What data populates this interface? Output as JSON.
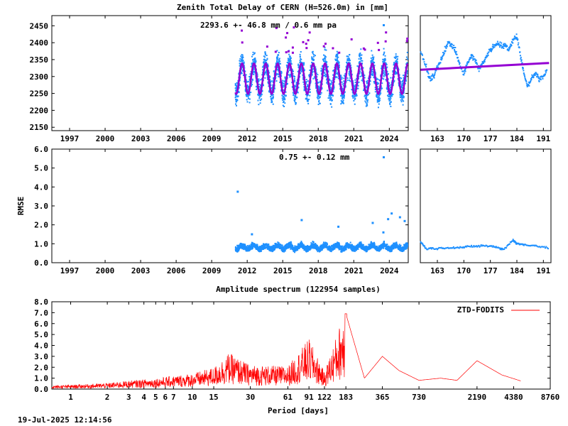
{
  "chart_data": [
    {
      "id": "ztd",
      "type": "scatter",
      "title": "Zenith Total Delay of CERN (H=526.0m) in [mm]",
      "annotation": "2293.6 +-  46.8 mm /  0.6 mm pa",
      "ylim": [
        2140,
        2480
      ],
      "yticks": [
        "2150",
        "2200",
        "2250",
        "2300",
        "2350",
        "2400",
        "2450"
      ],
      "xlim": [
        1995.5,
        2025.6
      ],
      "xticks": [
        "1997",
        "2000",
        "2003",
        "2006",
        "2009",
        "2012",
        "2015",
        "2018",
        "2021",
        "2024"
      ],
      "series": [
        {
          "values": {
            "start": 2011.0,
            "end": 2025.55,
            "mean": 2293.6,
            "amplitude": 45,
            "spread": 55
          },
          "color": "#1e90ff"
        },
        {
          "values": {
            "start": 2011.0,
            "end": 2025.55,
            "mean": 2293.6,
            "amplitude": 45
          },
          "color": "#9400d3"
        }
      ],
      "color_points": "#1e90ff",
      "color_model": "#9400d3"
    },
    {
      "id": "ztd-zoom",
      "type": "scatter",
      "xlim": [
        158.5,
        193
      ],
      "xticks": [
        "163",
        "170",
        "177",
        "184",
        "191"
      ],
      "ylim": [
        2140,
        2480
      ],
      "series": [
        {
          "values": [
            [
              158.6,
              2370
            ],
            [
              160,
              2330
            ],
            [
              161,
              2290
            ],
            [
              162,
              2300
            ],
            [
              163,
              2330
            ],
            [
              164,
              2350
            ],
            [
              165,
              2380
            ],
            [
              166,
              2400
            ],
            [
              167,
              2390
            ],
            [
              168,
              2370
            ],
            [
              169,
              2330
            ],
            [
              170,
              2310
            ],
            [
              171,
              2340
            ],
            [
              172,
              2360
            ],
            [
              173,
              2350
            ],
            [
              174,
              2320
            ],
            [
              175,
              2340
            ],
            [
              176,
              2360
            ],
            [
              177,
              2380
            ],
            [
              178,
              2390
            ],
            [
              179,
              2400
            ],
            [
              180,
              2390
            ],
            [
              181,
              2390
            ],
            [
              182,
              2380
            ],
            [
              183,
              2410
            ],
            [
              184,
              2420
            ],
            [
              185,
              2360
            ],
            [
              186,
              2300
            ],
            [
              187,
              2270
            ],
            [
              188,
              2300
            ],
            [
              189,
              2310
            ],
            [
              190,
              2290
            ],
            [
              191,
              2300
            ],
            [
              192,
              2320
            ]
          ],
          "color": "#1e90ff"
        },
        {
          "values": [
            [
              158.6,
              2320
            ],
            [
              192.5,
              2340
            ]
          ],
          "color": "#9400d3"
        }
      ]
    },
    {
      "id": "rmse",
      "type": "scatter",
      "ylabel": "RMSE",
      "annotation": "0.75 +-  0.12 mm",
      "ylim": [
        0.0,
        6.0
      ],
      "yticks": [
        "0.0",
        "1.0",
        "2.0",
        "3.0",
        "4.0",
        "5.0",
        "6.0"
      ],
      "xlim": [
        1995.5,
        2025.6
      ],
      "xticks": [
        "1997",
        "2000",
        "2003",
        "2006",
        "2009",
        "2012",
        "2015",
        "2018",
        "2021",
        "2024"
      ],
      "series": [
        {
          "values": {
            "start": 2011.0,
            "end": 2025.55,
            "mean": 0.8,
            "spread": 0.25
          },
          "color": "#1e90ff"
        }
      ],
      "outliers": [
        [
          2011.2,
          3.75
        ],
        [
          2016.6,
          2.25
        ],
        [
          2019.7,
          1.9
        ],
        [
          2022.6,
          2.1
        ],
        [
          2023.9,
          2.3
        ],
        [
          2024.2,
          2.6
        ],
        [
          2024.9,
          2.4
        ],
        [
          2025.3,
          2.2
        ],
        [
          2023.5,
          1.6
        ],
        [
          2012.4,
          1.5
        ]
      ]
    },
    {
      "id": "rmse-zoom",
      "type": "scatter",
      "xlim": [
        158.5,
        193
      ],
      "xticks": [
        "163",
        "170",
        "177",
        "184",
        "191"
      ],
      "ylim": [
        0.0,
        6.0
      ],
      "series": [
        {
          "values": [
            [
              158.6,
              1.1
            ],
            [
              160,
              0.75
            ],
            [
              163,
              0.75
            ],
            [
              166,
              0.8
            ],
            [
              169,
              0.8
            ],
            [
              172,
              0.85
            ],
            [
              175,
              0.9
            ],
            [
              178,
              0.85
            ],
            [
              180.5,
              0.7
            ],
            [
              183,
              1.2
            ],
            [
              184,
              1.0
            ],
            [
              186,
              0.95
            ],
            [
              189,
              0.9
            ],
            [
              192.5,
              0.75
            ]
          ],
          "color": "#1e90ff"
        }
      ]
    },
    {
      "id": "spectrum",
      "type": "line",
      "title": "Amplitude spectrum (122954 samples)",
      "xlabel": "Period [days]",
      "ylim": [
        0.0,
        8.0
      ],
      "yticks": [
        "0.0",
        "1.0",
        "2.0",
        "3.0",
        "4.0",
        "5.0",
        "6.0",
        "7.0",
        "8.0"
      ],
      "xlim": [
        0.7,
        8760
      ],
      "xticks": [
        {
          "v": 1,
          "label": "1"
        },
        {
          "v": 2,
          "label": "2"
        },
        {
          "v": 3,
          "label": "3"
        },
        {
          "v": 4,
          "label": "4"
        },
        {
          "v": 5,
          "label": "5"
        },
        {
          "v": 6,
          "label": "6"
        },
        {
          "v": 7,
          "label": "7"
        },
        {
          "v": 10,
          "label": "10"
        },
        {
          "v": 15,
          "label": "15"
        },
        {
          "v": 30,
          "label": "30"
        },
        {
          "v": 61,
          "label": "61"
        },
        {
          "v": 91,
          "label": "91"
        },
        {
          "v": 122,
          "label": "122"
        },
        {
          "v": 183,
          "label": "183"
        },
        {
          "v": 365,
          "label": "365"
        },
        {
          "v": 730,
          "label": "730"
        },
        {
          "v": 2190,
          "label": "2190"
        },
        {
          "v": 4380,
          "label": "4380"
        },
        {
          "v": 8760,
          "label": "8760"
        }
      ],
      "series": [
        {
          "name": "ZTD-FODITS",
          "color": "#ff0000",
          "values": [
            [
              0.7,
              0.3
            ],
            [
              1,
              0.35
            ],
            [
              2,
              0.5
            ],
            [
              3,
              0.7
            ],
            [
              5,
              0.9
            ],
            [
              7,
              1.1
            ],
            [
              10,
              1.3
            ],
            [
              15,
              1.8
            ],
            [
              20,
              3.0
            ],
            [
              30,
              2.0
            ],
            [
              61,
              1.9
            ],
            [
              91,
              4.2
            ],
            [
              122,
              1.4
            ],
            [
              183,
              6.9
            ],
            [
              260,
              1.0
            ],
            [
              365,
              3.0
            ],
            [
              500,
              1.7
            ],
            [
              730,
              0.8
            ],
            [
              1100,
              1.0
            ],
            [
              1500,
              0.8
            ],
            [
              2190,
              2.6
            ],
            [
              3500,
              1.3
            ],
            [
              5000,
              0.75
            ]
          ]
        }
      ]
    }
  ],
  "timestamp": "19-Jul-2025 12:14:56"
}
